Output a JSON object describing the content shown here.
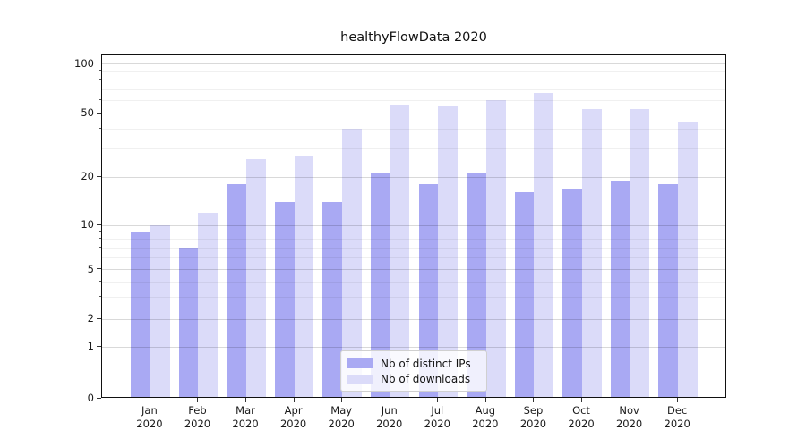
{
  "title": "healthyFlowData 2020",
  "colors": {
    "distinct_ips": "#a9a9f3",
    "downloads": "#dbdbf9",
    "axis_frame": "#111111",
    "background": "#ffffff"
  },
  "chart_data": {
    "type": "bar",
    "title": "healthyFlowData 2020",
    "categories": [
      "Jan",
      "Feb",
      "Mar",
      "Apr",
      "May",
      "Jun",
      "Jul",
      "Aug",
      "Sep",
      "Oct",
      "Nov",
      "Dec"
    ],
    "x_sub_label": "2020",
    "series": [
      {
        "name": "Nb of distinct IPs",
        "color": "#a9a9f3",
        "values": [
          9,
          7,
          18,
          14,
          14,
          21,
          18,
          21,
          16,
          17,
          19,
          18
        ]
      },
      {
        "name": "Nb of downloads",
        "color": "#dbdbf9",
        "values": [
          10,
          12,
          26,
          27,
          40,
          57,
          55,
          60,
          67,
          53,
          53,
          44
        ]
      }
    ],
    "ylabel": "",
    "xlabel": "",
    "yscale": "symlog",
    "y_ticks": [
      0,
      1,
      2,
      5,
      10,
      20,
      50,
      100
    ],
    "y_minor_ticks": [
      3,
      4,
      6,
      7,
      8,
      9,
      30,
      40,
      60,
      70,
      80,
      90
    ],
    "ylim": [
      0,
      115
    ],
    "grid": true,
    "legend_position": "lower center"
  }
}
